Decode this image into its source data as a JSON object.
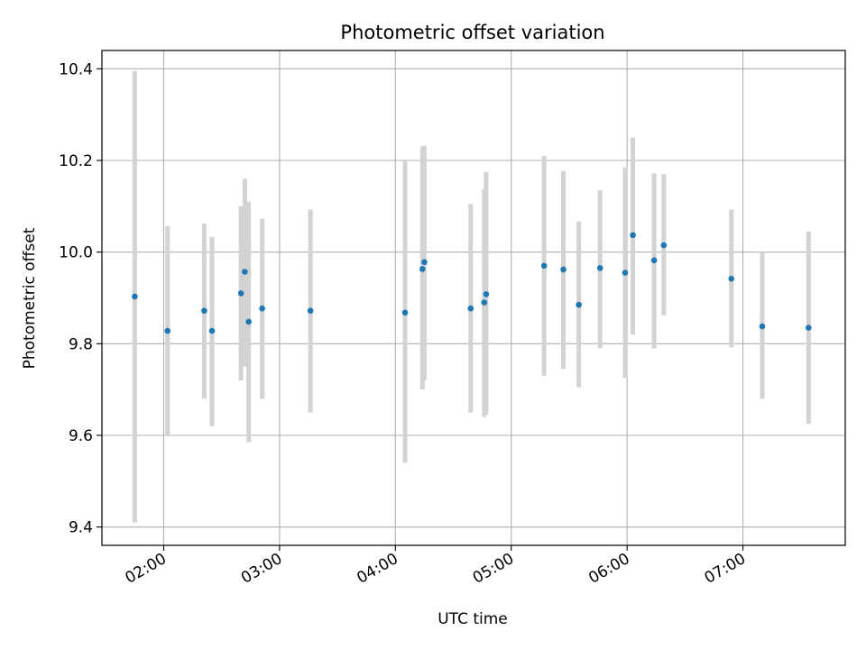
{
  "chart_data": {
    "type": "scatter",
    "title": "Photometric offset variation",
    "xlabel": "UTC time",
    "ylabel": "Photometric offset",
    "xlim": [
      "01:28",
      "07:53"
    ],
    "ylim": [
      9.36,
      10.44
    ],
    "grid": true,
    "x_ticks": [
      "02:00",
      "03:00",
      "04:00",
      "05:00",
      "06:00",
      "07:00"
    ],
    "y_ticks": [
      9.4,
      9.6,
      9.8,
      10.0,
      10.2,
      10.4
    ],
    "y_tick_labels": [
      "9.4",
      "9.6",
      "9.8",
      "10.0",
      "10.2",
      "10.4"
    ],
    "colors": {
      "point": "#1f77b4",
      "errorbar": "#d3d3d3",
      "grid": "#b0b0b0"
    },
    "points": [
      {
        "x": "01:45",
        "y": 9.903,
        "low": 9.41,
        "high": 10.395
      },
      {
        "x": "02:02",
        "y": 9.828,
        "low": 9.6,
        "high": 10.057
      },
      {
        "x": "02:21",
        "y": 9.872,
        "low": 9.68,
        "high": 10.062
      },
      {
        "x": "02:25",
        "y": 9.828,
        "low": 9.62,
        "high": 10.033
      },
      {
        "x": "02:40",
        "y": 9.91,
        "low": 9.72,
        "high": 10.1
      },
      {
        "x": "02:42",
        "y": 9.957,
        "low": 9.75,
        "high": 10.16
      },
      {
        "x": "02:44",
        "y": 9.848,
        "low": 9.585,
        "high": 10.11
      },
      {
        "x": "02:51",
        "y": 9.877,
        "low": 9.68,
        "high": 10.073
      },
      {
        "x": "03:16",
        "y": 9.872,
        "low": 9.65,
        "high": 10.093
      },
      {
        "x": "04:05",
        "y": 9.868,
        "low": 9.54,
        "high": 10.2
      },
      {
        "x": "04:14",
        "y": 9.963,
        "low": 9.7,
        "high": 10.23
      },
      {
        "x": "04:15",
        "y": 9.978,
        "low": 9.72,
        "high": 10.232
      },
      {
        "x": "04:39",
        "y": 9.877,
        "low": 9.65,
        "high": 10.105
      },
      {
        "x": "04:46",
        "y": 9.89,
        "low": 9.64,
        "high": 10.138
      },
      {
        "x": "04:47",
        "y": 9.908,
        "low": 9.645,
        "high": 10.175
      },
      {
        "x": "05:17",
        "y": 9.97,
        "low": 9.73,
        "high": 10.21
      },
      {
        "x": "05:27",
        "y": 9.962,
        "low": 9.745,
        "high": 10.177
      },
      {
        "x": "05:35",
        "y": 9.885,
        "low": 9.705,
        "high": 10.067
      },
      {
        "x": "05:46",
        "y": 9.965,
        "low": 9.79,
        "high": 10.135
      },
      {
        "x": "05:59",
        "y": 9.955,
        "low": 9.725,
        "high": 10.185
      },
      {
        "x": "06:03",
        "y": 10.037,
        "low": 9.82,
        "high": 10.25
      },
      {
        "x": "06:14",
        "y": 9.982,
        "low": 9.79,
        "high": 10.172
      },
      {
        "x": "06:19",
        "y": 10.015,
        "low": 9.862,
        "high": 10.17
      },
      {
        "x": "06:54",
        "y": 9.942,
        "low": 9.792,
        "high": 10.093
      },
      {
        "x": "07:10",
        "y": 9.838,
        "low": 9.68,
        "high": 10.0
      },
      {
        "x": "07:34",
        "y": 9.835,
        "low": 9.625,
        "high": 10.045
      }
    ]
  }
}
